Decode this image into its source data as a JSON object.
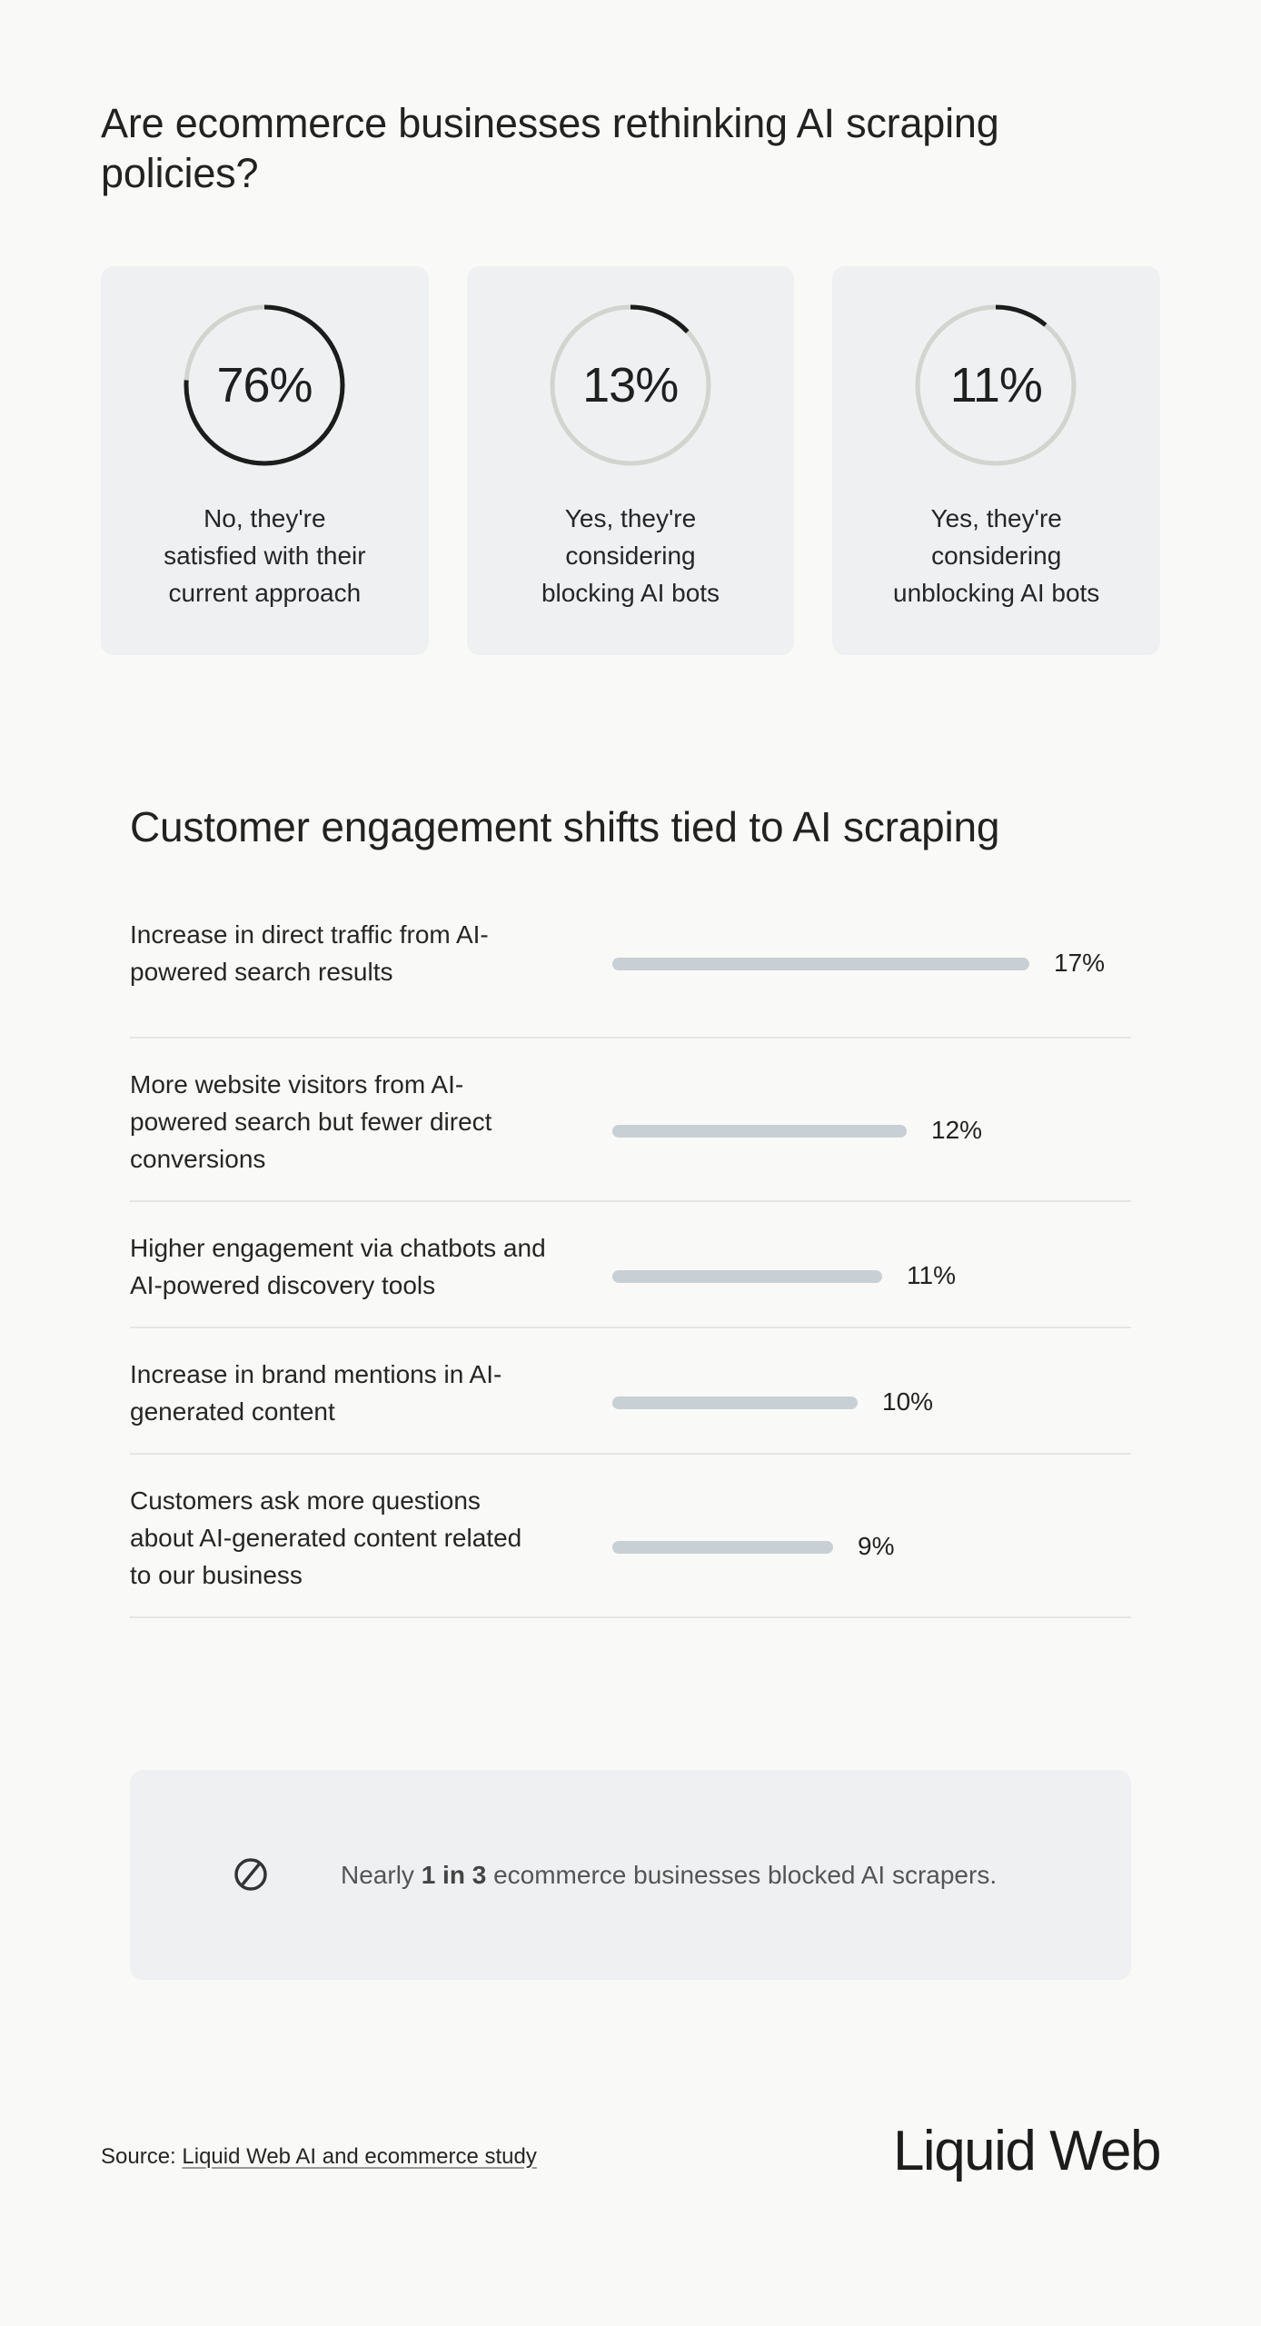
{
  "title": "Are ecommerce businesses rethinking AI scraping policies?",
  "colors": {
    "background": "#f9f9f7",
    "card": "#eef0f1",
    "ring_track": "#d2d4d0",
    "ring_progress": "#1c1c1c",
    "bar": "#c8d0d5",
    "divider": "#e6e6e4"
  },
  "cards": [
    {
      "value": "76%",
      "percent": 76,
      "label": "No, they're satisfied with their current approach",
      "label_lines": [
        "No, they're",
        "satisfied with their",
        "current approach"
      ]
    },
    {
      "value": "13%",
      "percent": 13,
      "label": "Yes, they're considering blocking AI bots",
      "label_lines": [
        "Yes, they're",
        "considering",
        "blocking AI bots"
      ]
    },
    {
      "value": "11%",
      "percent": 11,
      "label": "Yes, they're considering unblocking AI bots",
      "label_lines": [
        "Yes, they're",
        "considering",
        "unblocking AI bots"
      ]
    }
  ],
  "engagement": {
    "title": "Customer engagement shifts tied to AI scraping",
    "rows": [
      {
        "label": "Increase in direct traffic from AI-powered search results",
        "value": "17%",
        "percent": 17
      },
      {
        "label": "More website visitors from AI-powered search but fewer direct conversions",
        "value": "12%",
        "percent": 12
      },
      {
        "label": "Higher engagement via chatbots and AI-powered discovery tools",
        "value": "11%",
        "percent": 11
      },
      {
        "label": "Increase in brand mentions in AI-generated content",
        "value": "10%",
        "percent": 10
      },
      {
        "label": "Customers ask more questions about AI-generated content related to our business",
        "value": "9%",
        "percent": 9
      }
    ]
  },
  "callout": {
    "icon": "prohibited-icon",
    "prefix": "Nearly ",
    "emphasis": "1 in 3",
    "suffix": " ecommerce businesses blocked AI scrapers."
  },
  "footer": {
    "source_label": "Source: ",
    "source_link": "Liquid Web AI and ecommerce study",
    "logo": "Liquid Web"
  },
  "chart_data": [
    {
      "type": "pie",
      "title": "Are ecommerce businesses rethinking AI scraping policies?",
      "categories": [
        "No, they're satisfied with their current approach",
        "Yes, they're considering blocking AI bots",
        "Yes, they're considering unblocking AI bots"
      ],
      "values": [
        76,
        13,
        11
      ],
      "unit": "%",
      "style": "three separate progress rings"
    },
    {
      "type": "bar",
      "orientation": "horizontal",
      "title": "Customer engagement shifts tied to AI scraping",
      "categories": [
        "Increase in direct traffic from AI-powered search results",
        "More website visitors from AI-powered search but fewer direct conversions",
        "Higher engagement via chatbots and AI-powered discovery tools",
        "Increase in brand mentions in AI-generated content",
        "Customers ask more questions about AI-generated content related to our business"
      ],
      "values": [
        17,
        12,
        11,
        10,
        9
      ],
      "unit": "%",
      "xlabel": "",
      "ylabel": "",
      "grid": false,
      "legend": "none"
    }
  ]
}
